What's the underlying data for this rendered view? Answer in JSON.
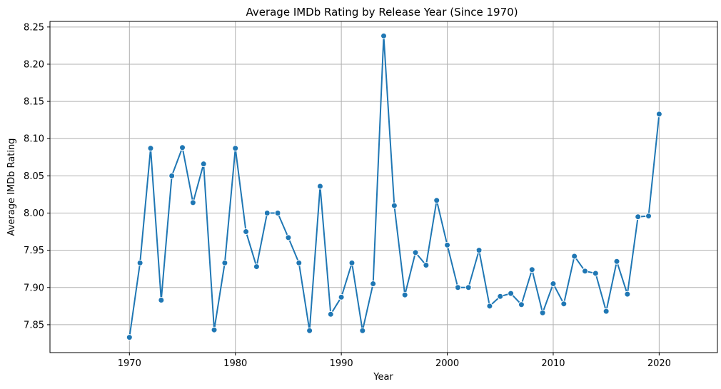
{
  "chart_data": {
    "type": "line",
    "title": "Average IMDb Rating by Release Year (Since 1970)",
    "xlabel": "Year",
    "ylabel": "Average IMDb Rating",
    "xlim": [
      1962.5,
      2025.5
    ],
    "ylim": [
      7.8125,
      8.2575
    ],
    "xticks": [
      1970,
      1980,
      1990,
      2000,
      2010,
      2020
    ],
    "yticks": [
      7.85,
      7.9,
      7.95,
      8.0,
      8.05,
      8.1,
      8.15,
      8.2,
      8.25
    ],
    "grid": true,
    "line_color": "#1f77b4",
    "marker": "circle",
    "series": [
      {
        "x": [
          1970,
          1971,
          1972,
          1973,
          1974,
          1975,
          1976,
          1977,
          1978,
          1979,
          1980,
          1981,
          1982,
          1983,
          1984,
          1985,
          1986,
          1987,
          1988,
          1989,
          1990,
          1991,
          1992,
          1993,
          1994,
          1995,
          1996,
          1997,
          1998,
          1999,
          2000,
          2001,
          2002,
          2003,
          2004,
          2005,
          2006,
          2007,
          2008,
          2009,
          2010,
          2011,
          2012,
          2013,
          2014,
          2015,
          2016,
          2017,
          2018,
          2019,
          2020
        ],
        "values": [
          7.833,
          7.933,
          8.087,
          7.883,
          8.05,
          8.088,
          8.014,
          8.066,
          7.843,
          7.933,
          8.087,
          7.975,
          7.928,
          8.0,
          8.0,
          7.967,
          7.933,
          7.842,
          8.036,
          7.864,
          7.887,
          7.933,
          7.842,
          7.905,
          8.238,
          8.01,
          7.89,
          7.947,
          7.93,
          8.017,
          7.957,
          7.9,
          7.9,
          7.95,
          7.875,
          7.888,
          7.892,
          7.877,
          7.924,
          7.866,
          7.905,
          7.878,
          7.942,
          7.922,
          7.919,
          7.868,
          7.935,
          7.891,
          7.995,
          7.996,
          8.133
        ]
      }
    ]
  }
}
